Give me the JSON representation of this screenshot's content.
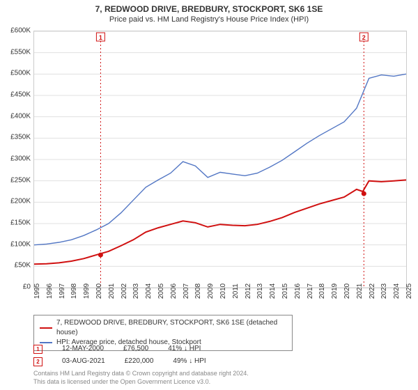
{
  "title": "7, REDWOOD DRIVE, BREDBURY, STOCKPORT, SK6 1SE",
  "subtitle": "Price paid vs. HM Land Registry's House Price Index (HPI)",
  "chart": {
    "type": "line",
    "background_color": "#ffffff",
    "grid_color": "#e0e0e0",
    "axis_color": "#cccccc",
    "x": {
      "min": 1995,
      "max": 2025,
      "ticks": [
        1995,
        1996,
        1997,
        1998,
        1999,
        2000,
        2001,
        2002,
        2003,
        2004,
        2005,
        2006,
        2007,
        2008,
        2009,
        2010,
        2011,
        2012,
        2013,
        2014,
        2015,
        2016,
        2017,
        2018,
        2019,
        2020,
        2021,
        2022,
        2023,
        2024,
        2025
      ]
    },
    "y": {
      "min": 0,
      "max": 600000,
      "ticks": [
        0,
        50000,
        100000,
        150000,
        200000,
        250000,
        300000,
        350000,
        400000,
        450000,
        500000,
        550000,
        600000
      ],
      "tick_labels": [
        "£0",
        "£50K",
        "£100K",
        "£150K",
        "£200K",
        "£250K",
        "£300K",
        "£350K",
        "£400K",
        "£450K",
        "£500K",
        "£550K",
        "£600K"
      ]
    },
    "series": [
      {
        "id": "property",
        "label": "7, REDWOOD DRIVE, BREDBURY, STOCKPORT, SK6 1SE (detached house)",
        "color": "#d01010",
        "line_width": 2,
        "points": [
          [
            1995,
            55000
          ],
          [
            1996,
            56000
          ],
          [
            1997,
            58000
          ],
          [
            1998,
            62000
          ],
          [
            1999,
            68000
          ],
          [
            2000,
            76500
          ],
          [
            2001,
            85000
          ],
          [
            2002,
            98000
          ],
          [
            2003,
            112000
          ],
          [
            2004,
            130000
          ],
          [
            2005,
            140000
          ],
          [
            2006,
            148000
          ],
          [
            2007,
            156000
          ],
          [
            2008,
            152000
          ],
          [
            2009,
            142000
          ],
          [
            2010,
            148000
          ],
          [
            2011,
            146000
          ],
          [
            2012,
            145000
          ],
          [
            2013,
            148000
          ],
          [
            2014,
            155000
          ],
          [
            2015,
            164000
          ],
          [
            2016,
            176000
          ],
          [
            2017,
            186000
          ],
          [
            2018,
            196000
          ],
          [
            2019,
            204000
          ],
          [
            2020,
            212000
          ],
          [
            2021,
            230000
          ],
          [
            2021.5,
            225000
          ],
          [
            2022,
            250000
          ],
          [
            2023,
            248000
          ],
          [
            2024,
            250000
          ],
          [
            2025,
            252000
          ]
        ]
      },
      {
        "id": "hpi",
        "label": "HPI: Average price, detached house, Stockport",
        "color": "#5276c4",
        "line_width": 1.4,
        "points": [
          [
            1995,
            100000
          ],
          [
            1996,
            102000
          ],
          [
            1997,
            106000
          ],
          [
            1998,
            112000
          ],
          [
            1999,
            122000
          ],
          [
            2000,
            135000
          ],
          [
            2001,
            150000
          ],
          [
            2002,
            175000
          ],
          [
            2003,
            205000
          ],
          [
            2004,
            235000
          ],
          [
            2005,
            252000
          ],
          [
            2006,
            268000
          ],
          [
            2007,
            295000
          ],
          [
            2008,
            285000
          ],
          [
            2009,
            258000
          ],
          [
            2010,
            270000
          ],
          [
            2011,
            266000
          ],
          [
            2012,
            262000
          ],
          [
            2013,
            268000
          ],
          [
            2014,
            282000
          ],
          [
            2015,
            298000
          ],
          [
            2016,
            318000
          ],
          [
            2017,
            338000
          ],
          [
            2018,
            356000
          ],
          [
            2019,
            372000
          ],
          [
            2020,
            388000
          ],
          [
            2021,
            420000
          ],
          [
            2022,
            490000
          ],
          [
            2023,
            498000
          ],
          [
            2024,
            495000
          ],
          [
            2025,
            500000
          ]
        ]
      }
    ],
    "markers": [
      {
        "n": "1",
        "x": 2000.36,
        "y": 76500,
        "date": "12-MAY-2000",
        "price_label": "£76,500",
        "hpi_delta_label": "41% ↓ HPI",
        "color": "#d01010"
      },
      {
        "n": "2",
        "x": 2021.59,
        "y": 220000,
        "date": "03-AUG-2021",
        "price_label": "£220,000",
        "hpi_delta_label": "49% ↓ HPI",
        "color": "#d01010"
      }
    ],
    "marker_line_color": "#d01010",
    "marker_line_dash": "2,3",
    "marker_fill": "#d01010",
    "title_fontsize": 12,
    "label_fontsize": 10
  },
  "legend": {
    "rows": [
      {
        "color": "#d01010",
        "label": "7, REDWOOD DRIVE, BREDBURY, STOCKPORT, SK6 1SE (detached house)"
      },
      {
        "color": "#5276c4",
        "label": "HPI: Average price, detached house, Stockport"
      }
    ]
  },
  "footer": {
    "line1": "Contains HM Land Registry data © Crown copyright and database right 2024.",
    "line2": "This data is licensed under the Open Government Licence v3.0."
  }
}
